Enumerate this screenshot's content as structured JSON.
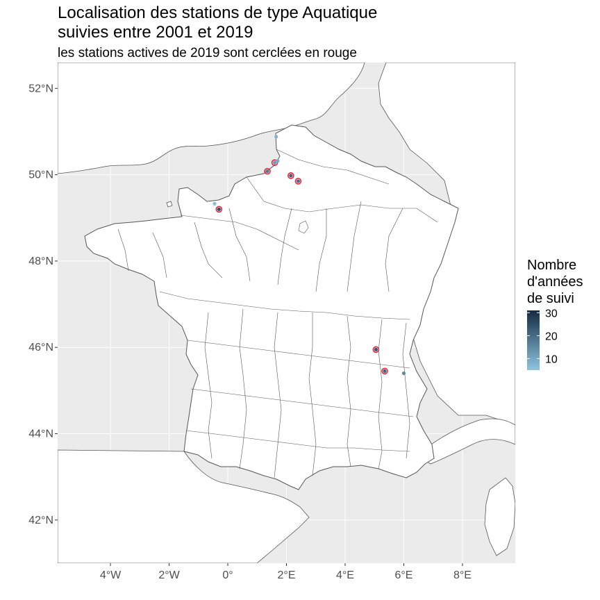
{
  "title": {
    "line1": "Localisation des stations de type Aquatique",
    "line2": "suivies entre 2001 et 2019",
    "subtitle": "les stations actives de 2019 sont cerclées en rouge"
  },
  "axes": {
    "lat_labels": [
      "52°N",
      "50°N",
      "48°N",
      "46°N",
      "44°N",
      "42°N"
    ],
    "lon_labels": [
      "4°W",
      "2°W",
      "0°",
      "2°E",
      "4°E",
      "6°E",
      "8°E"
    ],
    "lat_values": [
      52,
      50,
      48,
      46,
      44,
      42
    ],
    "lon_values": [
      -4,
      -2,
      0,
      2,
      4,
      6,
      8
    ],
    "xlim": [
      -5.8,
      9.8
    ],
    "ylim": [
      41.0,
      52.6
    ]
  },
  "legend": {
    "title_lines": [
      "Nombre",
      "d'années",
      "de suivi"
    ],
    "tick_labels": [
      "30",
      "20",
      "10"
    ],
    "tick_values": [
      30,
      20,
      10
    ],
    "range": [
      5,
      31
    ],
    "color_low": "#8ec4df",
    "color_high": "#132b43"
  },
  "colors": {
    "sea": "#ebebeb",
    "land": "#ffffff",
    "border": "#555555",
    "grid": "#ffffff",
    "active_ring": "#e8243c"
  },
  "stations": [
    {
      "lon": 1.65,
      "lat": 50.88,
      "years": 8,
      "active": false
    },
    {
      "lon": 1.6,
      "lat": 50.28,
      "years": 12,
      "active": true
    },
    {
      "lon": 1.7,
      "lat": 50.32,
      "years": 9,
      "active": false
    },
    {
      "lon": 1.35,
      "lat": 50.08,
      "years": 18,
      "active": true
    },
    {
      "lon": 2.15,
      "lat": 49.98,
      "years": 22,
      "active": true
    },
    {
      "lon": 2.4,
      "lat": 49.85,
      "years": 20,
      "active": true
    },
    {
      "lon": -0.45,
      "lat": 49.33,
      "years": 6,
      "active": false
    },
    {
      "lon": -0.3,
      "lat": 49.2,
      "years": 25,
      "active": true
    },
    {
      "lon": 5.05,
      "lat": 45.95,
      "years": 24,
      "active": true
    },
    {
      "lon": 5.35,
      "lat": 45.45,
      "years": 21,
      "active": true
    },
    {
      "lon": 6.0,
      "lat": 45.4,
      "years": 15,
      "active": false
    }
  ]
}
